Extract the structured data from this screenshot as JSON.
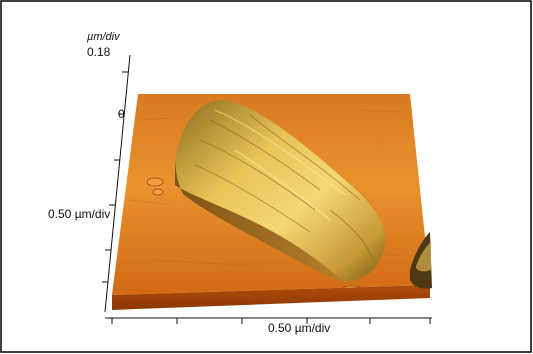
{
  "figure": {
    "z_axis_unit": "µm/div",
    "z_axis_max": "0.18",
    "z_axis_zero": "0",
    "y_axis_label": "0.50 µm/div",
    "x_axis_label": "0.50 µm/div"
  },
  "colors": {
    "border": "#000000",
    "surface_light": "#e8922e",
    "surface_dark": "#b34d0a",
    "feature_highlight": "#f2d26a",
    "feature_shadow": "#6b4a10"
  }
}
